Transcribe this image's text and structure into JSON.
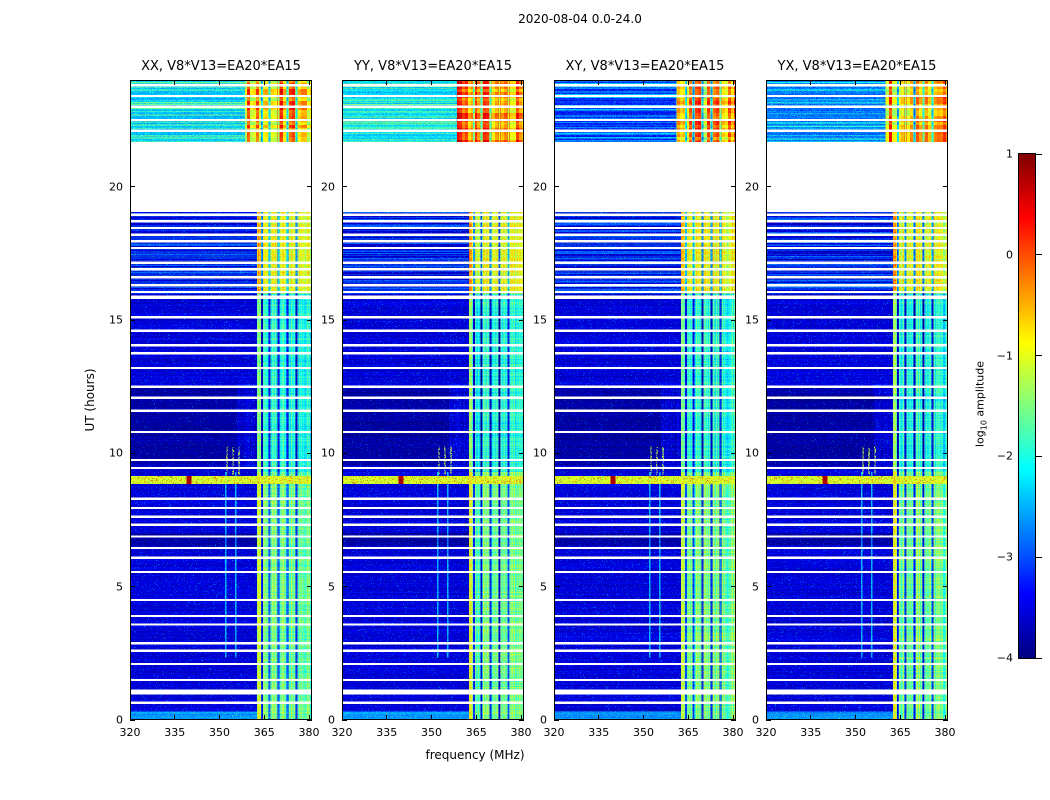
{
  "figure": {
    "title": "2020-08-04 0.0-24.0",
    "xlabel": "frequency (MHz)",
    "ylabel": "UT (hours)"
  },
  "colorbar": {
    "label_pre": "log",
    "label_sub": "10",
    "label_post": " amplitude"
  },
  "chart_data": {
    "type": "heatmap",
    "title": "2020-08-04 0.0-24.0",
    "xlabel": "frequency (MHz)",
    "ylabel": "UT (hours)",
    "xlim": [
      320,
      381
    ],
    "ylim": [
      0,
      24
    ],
    "xticks": [
      320,
      335,
      350,
      365,
      380
    ],
    "yticks": [
      0,
      5,
      10,
      15,
      20
    ],
    "colormap": "jet",
    "colorbar": {
      "label": "log10 amplitude",
      "ticks": [
        1,
        0,
        -1,
        -2,
        -3,
        -4
      ],
      "vmin": -4,
      "vmax": 1
    },
    "panels": [
      {
        "title": "XX, V8*V13=EA20*EA15",
        "seed": 11,
        "top_bg": -2.35,
        "top_band": -0.5,
        "top_fmin": 358.5
      },
      {
        "title": "YY, V8*V13=EA20*EA15",
        "seed": 22,
        "top_bg": -2.25,
        "top_band": -0.15,
        "top_fmin": 358.5
      },
      {
        "title": "XY, V8*V13=EA20*EA15",
        "seed": 33,
        "top_bg": -3.15,
        "top_band": -0.55,
        "top_fmin": 361.0
      },
      {
        "title": "YX, V8*V13=EA20*EA15",
        "seed": 44,
        "top_bg": -2.7,
        "top_band": -0.55,
        "top_fmin": 360.0
      }
    ],
    "background_level": -3.55,
    "blank_interval": [
      19.05,
      21.67
    ],
    "band": {
      "fmin": 362.5,
      "fmax": 381,
      "levels": [
        {
          "t": [
            0,
            9.3
          ],
          "v": -1.6
        },
        {
          "t": [
            9.3,
            16.0
          ],
          "v": -2.0
        },
        {
          "t": [
            16.0,
            19.05
          ],
          "v": -1.0
        }
      ]
    },
    "dark_intervals": [
      [
        9.55,
        12.45
      ],
      [
        6.55,
        7.02
      ]
    ],
    "dark_columns": [
      364.2,
      366.8,
      369.8,
      372.8,
      375.8
    ],
    "light_columns": [
      352.1,
      355.4
    ],
    "event": {
      "t": [
        8.85,
        9.15
      ],
      "v": -1.0,
      "red_blob_f": [
        339.0,
        340.6
      ],
      "dash_freqs": [
        352.5,
        354.5,
        356.5
      ],
      "dash_t": [
        9.2,
        10.25
      ]
    },
    "flagged_times": [
      [
        23.8,
        0.05
      ],
      [
        23.4,
        0.05
      ],
      [
        23.0,
        0.05
      ],
      [
        22.5,
        0.05
      ],
      [
        22.1,
        0.05
      ],
      [
        18.95,
        0.05
      ],
      [
        18.7,
        0.05
      ],
      [
        18.45,
        0.05
      ],
      [
        18.2,
        0.05
      ],
      [
        17.95,
        0.06
      ],
      [
        17.7,
        0.05
      ],
      [
        17.15,
        0.05
      ],
      [
        16.9,
        0.05
      ],
      [
        16.6,
        0.05
      ],
      [
        16.3,
        0.06
      ],
      [
        16.05,
        0.05
      ],
      [
        15.85,
        0.12
      ],
      [
        15.1,
        0.05
      ],
      [
        14.6,
        0.05
      ],
      [
        14.05,
        0.05
      ],
      [
        13.75,
        0.05
      ],
      [
        13.2,
        0.05
      ],
      [
        12.5,
        0.05
      ],
      [
        12.08,
        0.05
      ],
      [
        11.6,
        0.05
      ],
      [
        10.8,
        0.05
      ],
      [
        9.75,
        0.05
      ],
      [
        9.45,
        0.05
      ],
      [
        8.3,
        0.05
      ],
      [
        7.95,
        0.05
      ],
      [
        7.62,
        0.05
      ],
      [
        7.32,
        0.05
      ],
      [
        6.88,
        0.05
      ],
      [
        6.45,
        0.05
      ],
      [
        6.08,
        0.05
      ],
      [
        5.55,
        0.05
      ],
      [
        4.5,
        0.05
      ],
      [
        3.9,
        0.05
      ],
      [
        3.58,
        0.05
      ],
      [
        2.88,
        0.05
      ],
      [
        2.6,
        0.05
      ],
      [
        2.1,
        0.05
      ],
      [
        1.5,
        0.05
      ],
      [
        1.05,
        0.18
      ],
      [
        0.65,
        0.05
      ]
    ]
  }
}
